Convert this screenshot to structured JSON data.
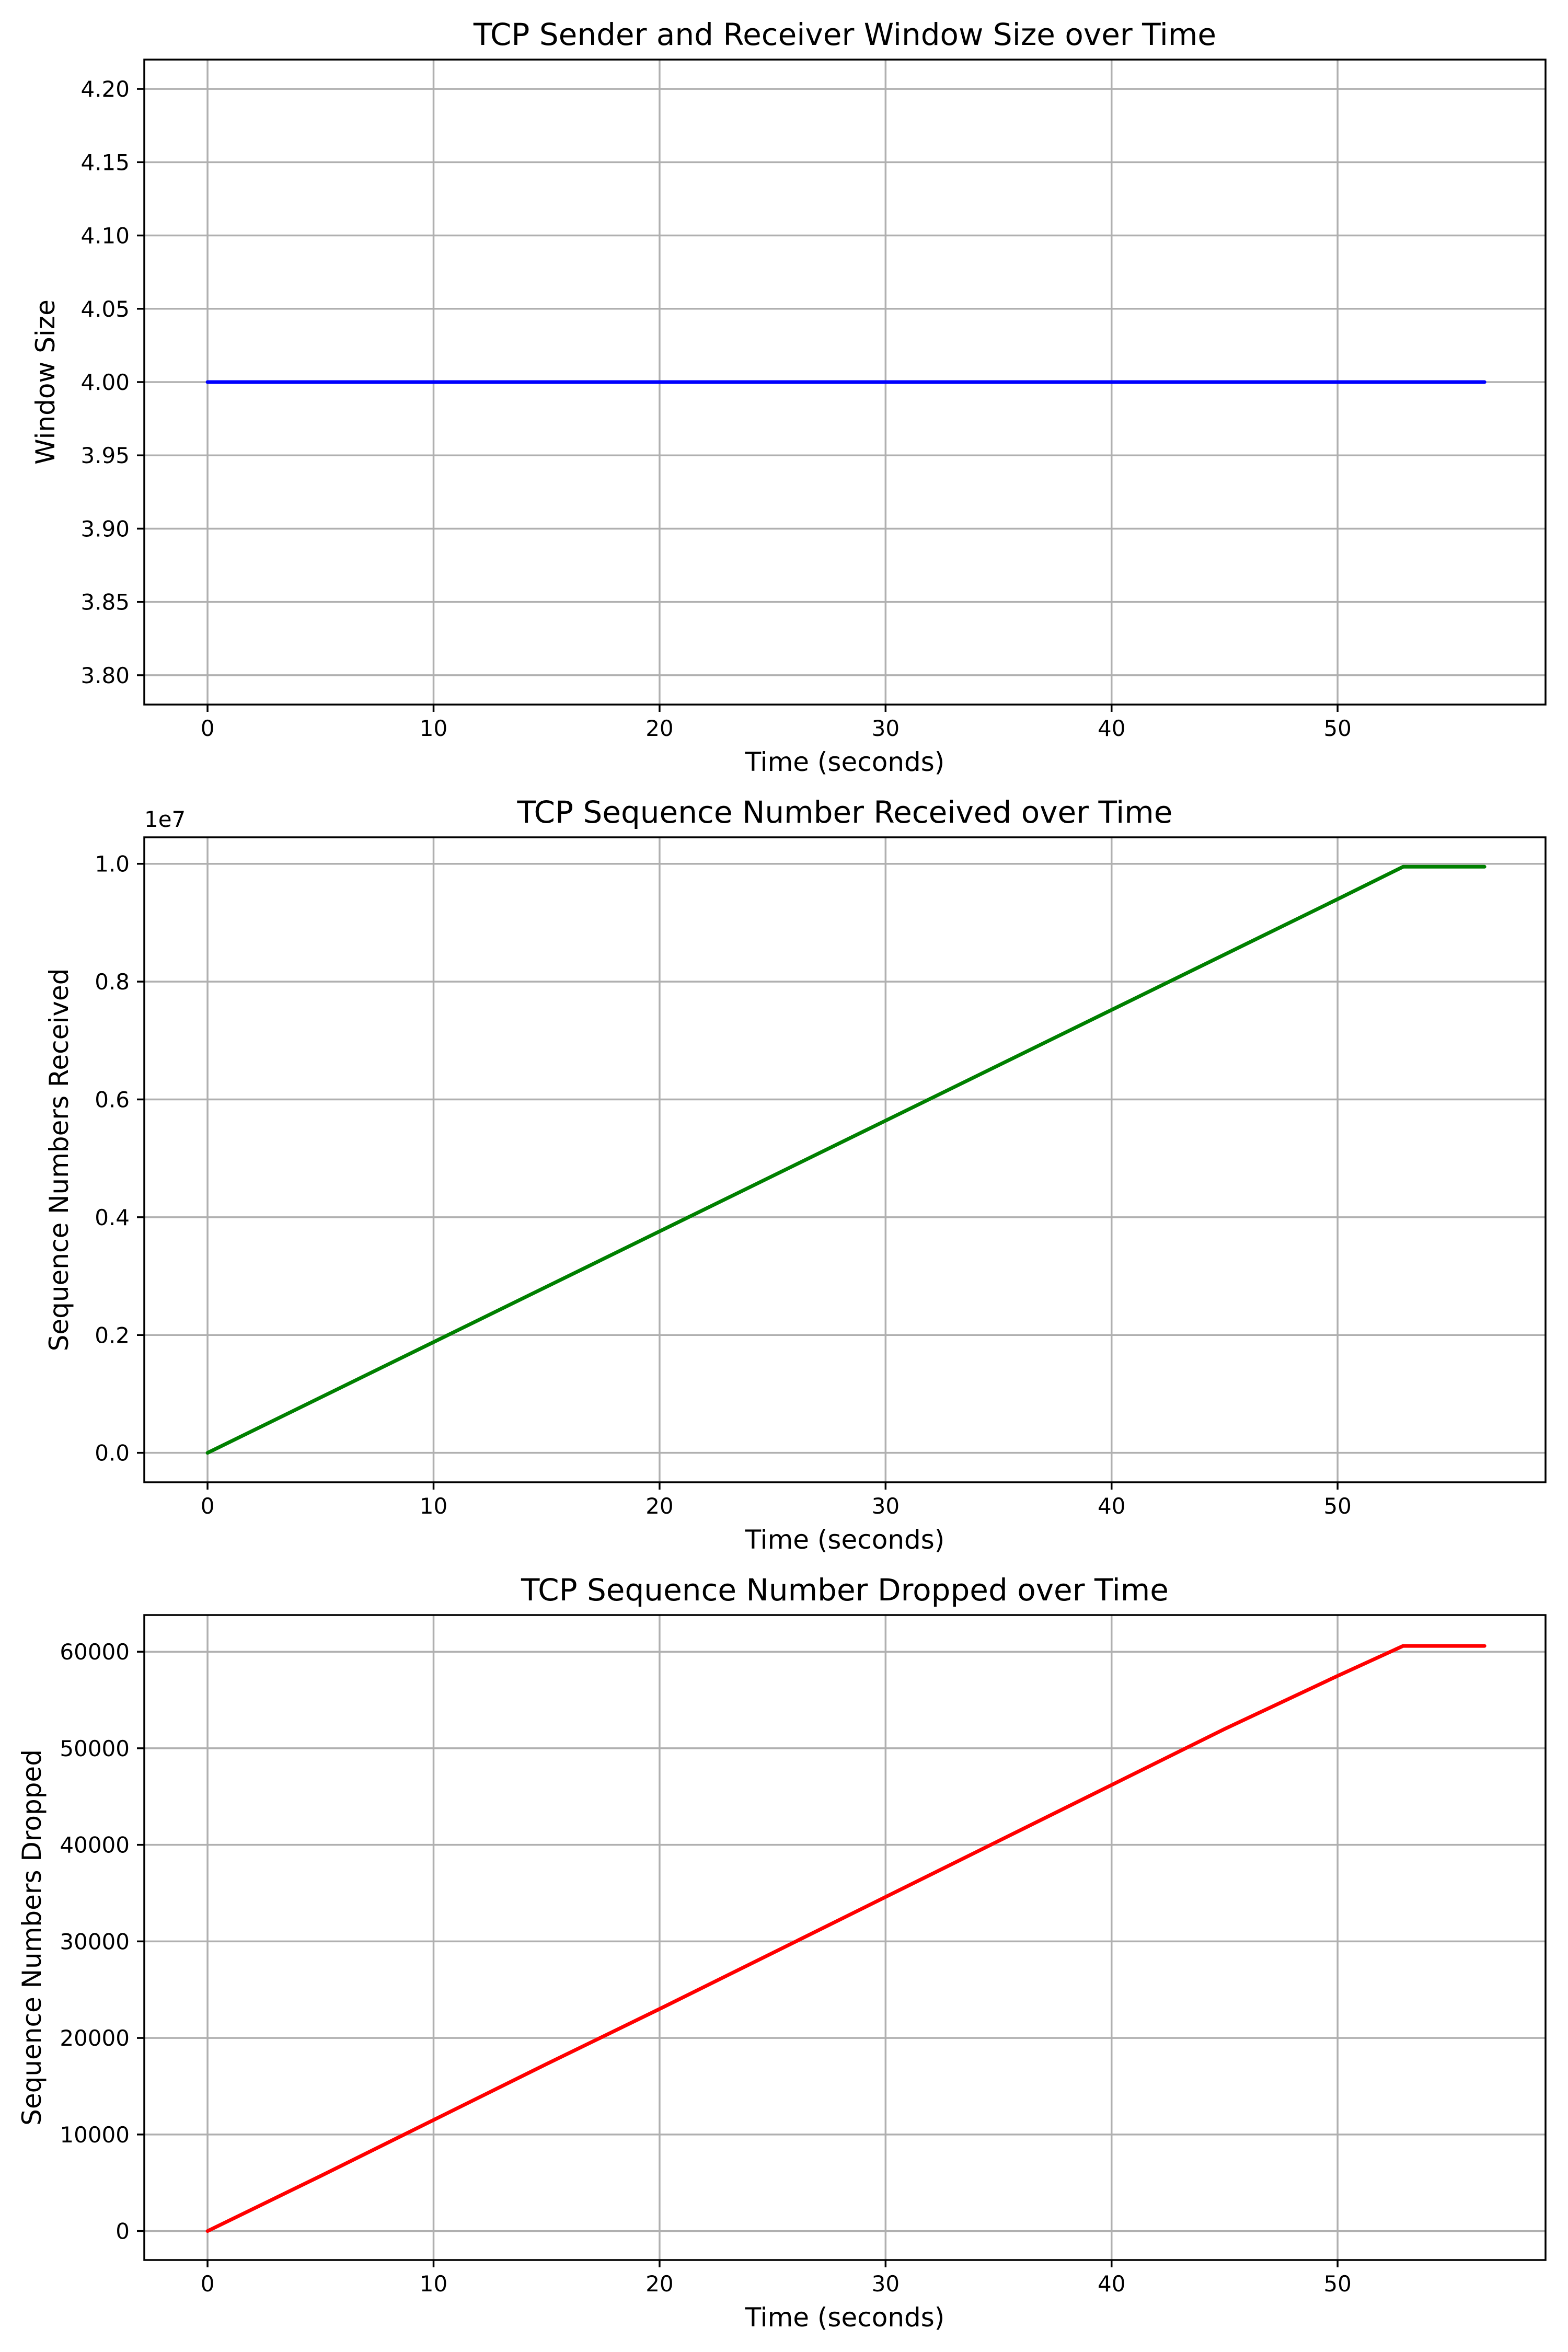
{
  "chart_data": [
    {
      "type": "line",
      "title": "TCP Sender and Receiver Window Size over Time",
      "xlabel": "Time (seconds)",
      "ylabel": "Window Size",
      "offset_label": "",
      "xlim": [
        -2.8,
        59.2
      ],
      "ylim": [
        3.78,
        4.22
      ],
      "xticks": [
        0,
        10,
        20,
        30,
        40,
        50
      ],
      "xtick_labels": [
        "0",
        "10",
        "20",
        "30",
        "40",
        "50"
      ],
      "yticks": [
        3.8,
        3.85,
        3.9,
        3.95,
        4.0,
        4.05,
        4.1,
        4.15,
        4.2
      ],
      "ytick_labels": [
        "3.80",
        "3.85",
        "3.90",
        "3.95",
        "4.00",
        "4.05",
        "4.10",
        "4.15",
        "4.20"
      ],
      "grid": true,
      "series": [
        {
          "color": "#0000ff",
          "x": [
            0,
            56.5
          ],
          "y": [
            4.0,
            4.0
          ]
        }
      ]
    },
    {
      "type": "line",
      "title": "TCP Sequence Number Received over Time",
      "xlabel": "Time (seconds)",
      "ylabel": "Sequence Numbers Received",
      "offset_label": "1e7",
      "xlim": [
        -2.8,
        59.2
      ],
      "ylim": [
        -0.05,
        1.045
      ],
      "xticks": [
        0,
        10,
        20,
        30,
        40,
        50
      ],
      "xtick_labels": [
        "0",
        "10",
        "20",
        "30",
        "40",
        "50"
      ],
      "yticks": [
        0.0,
        0.2,
        0.4,
        0.6,
        0.8,
        1.0
      ],
      "ytick_labels": [
        "0.0",
        "0.2",
        "0.4",
        "0.6",
        "0.8",
        "1.0"
      ],
      "grid": true,
      "series": [
        {
          "color": "#008000",
          "x": [
            0,
            10,
            20,
            30,
            40,
            50,
            52.9,
            56.5
          ],
          "y": [
            0.0,
            0.188,
            0.376,
            0.564,
            0.752,
            0.94,
            0.995,
            0.995
          ]
        }
      ]
    },
    {
      "type": "line",
      "title": "TCP Sequence Number Dropped over Time",
      "xlabel": "Time (seconds)",
      "ylabel": "Sequence Numbers Dropped",
      "offset_label": "",
      "xlim": [
        -2.8,
        59.2
      ],
      "ylim": [
        -3000,
        63800
      ],
      "xticks": [
        0,
        10,
        20,
        30,
        40,
        50
      ],
      "xtick_labels": [
        "0",
        "10",
        "20",
        "30",
        "40",
        "50"
      ],
      "yticks": [
        0,
        10000,
        20000,
        30000,
        40000,
        50000,
        60000
      ],
      "ytick_labels": [
        "0",
        "10000",
        "20000",
        "30000",
        "40000",
        "50000",
        "60000"
      ],
      "grid": true,
      "series": [
        {
          "color": "#ff0000",
          "x": [
            0,
            5,
            10,
            15,
            20,
            25,
            30,
            35,
            40,
            45,
            50,
            52.9,
            56.5
          ],
          "y": [
            0,
            5700,
            11500,
            17300,
            23000,
            28800,
            34600,
            40400,
            46200,
            52000,
            57500,
            60600,
            60600
          ]
        }
      ]
    }
  ]
}
